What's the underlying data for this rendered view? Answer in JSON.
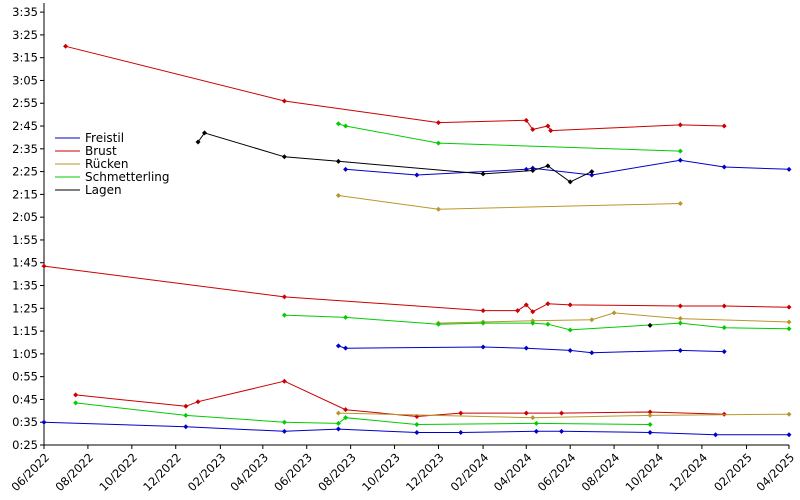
{
  "chart_data": {
    "type": "line",
    "title": "",
    "xlabel": "",
    "ylabel": "",
    "xlim": [
      "2022-06-01",
      "2025-04-01"
    ],
    "ylim_seconds": [
      25,
      219
    ],
    "y_ticks": [
      "0:25",
      "0:35",
      "0:45",
      "0:55",
      "1:05",
      "1:15",
      "1:25",
      "1:35",
      "1:45",
      "1:55",
      "2:05",
      "2:15",
      "2:25",
      "2:35",
      "2:45",
      "2:55",
      "3:05",
      "3:15",
      "3:25",
      "3:35"
    ],
    "x_ticks": [
      "06/2022",
      "08/2022",
      "10/2022",
      "12/2022",
      "02/2023",
      "04/2023",
      "06/2023",
      "08/2023",
      "10/2023",
      "12/2023",
      "02/2024",
      "04/2024",
      "06/2024",
      "08/2024",
      "10/2024",
      "12/2024",
      "02/2025",
      "04/2025"
    ],
    "legend_position": "left",
    "series": [
      {
        "name": "Freistil",
        "color": "#0000cc",
        "segments": [
          [
            [
              "2022-06-01",
              35
            ],
            [
              "2022-12-15",
              33
            ],
            [
              "2023-05-01",
              31
            ],
            [
              "2023-07-15",
              32
            ],
            [
              "2023-11-01",
              30.5
            ],
            [
              "2024-01-01",
              30.5
            ],
            [
              "2024-04-15",
              31
            ],
            [
              "2024-05-20",
              31
            ],
            [
              "2024-09-20",
              30.5
            ],
            [
              "2024-12-20",
              29.5
            ],
            [
              "2025-04-01",
              29.5
            ]
          ],
          [
            [
              "2023-07-15",
              68.5
            ],
            [
              "2023-07-25",
              67.5
            ],
            [
              "2024-02-01",
              68
            ],
            [
              "2024-04-01",
              67.5
            ],
            [
              "2024-06-01",
              66.5
            ],
            [
              "2024-07-01",
              65.5
            ],
            [
              "2024-11-01",
              66.5
            ],
            [
              "2025-01-01",
              66
            ]
          ],
          [
            [
              "2023-07-25",
              146
            ],
            [
              "2023-11-01",
              143.5
            ],
            [
              "2024-04-01",
              146
            ],
            [
              "2024-04-10",
              146.5
            ],
            [
              "2024-07-01",
              143.5
            ],
            [
              "2024-11-01",
              150
            ],
            [
              "2025-01-01",
              147
            ],
            [
              "2025-04-01",
              146
            ]
          ]
        ]
      },
      {
        "name": "Brust",
        "color": "#cc0000",
        "segments": [
          [
            [
              "2022-07-15",
              47
            ],
            [
              "2022-12-15",
              42
            ],
            [
              "2023-01-01",
              44
            ],
            [
              "2023-05-01",
              53
            ],
            [
              "2023-07-25",
              40.5
            ],
            [
              "2023-11-01",
              37.5
            ],
            [
              "2024-01-01",
              39
            ],
            [
              "2024-04-01",
              39
            ],
            [
              "2024-05-20",
              39
            ],
            [
              "2024-09-20",
              39.5
            ],
            [
              "2025-01-01",
              38.5
            ]
          ],
          [
            [
              "2022-06-01",
              103.5
            ],
            [
              "2023-05-01",
              90
            ],
            [
              "2024-02-01",
              84
            ],
            [
              "2024-03-20",
              84
            ],
            [
              "2024-04-01",
              86.5
            ],
            [
              "2024-04-10",
              83.5
            ],
            [
              "2024-05-01",
              87
            ],
            [
              "2024-06-01",
              86.5
            ],
            [
              "2024-11-01",
              86
            ],
            [
              "2025-01-01",
              86
            ],
            [
              "2025-04-01",
              85.5
            ]
          ],
          [
            [
              "2022-07-01",
              200
            ],
            [
              "2023-05-01",
              176
            ],
            [
              "2023-12-01",
              166.5
            ],
            [
              "2024-04-01",
              167.5
            ],
            [
              "2024-04-10",
              163.5
            ],
            [
              "2024-05-01",
              165
            ],
            [
              "2024-05-05",
              163
            ],
            [
              "2024-11-01",
              165.5
            ],
            [
              "2025-01-01",
              165
            ]
          ]
        ]
      },
      {
        "name": "Rücken",
        "color": "#b8962c",
        "segments": [
          [
            [
              "2023-07-15",
              39
            ],
            [
              "2024-04-10",
              37
            ],
            [
              "2024-09-20",
              38
            ],
            [
              "2025-04-01",
              38.5
            ]
          ],
          [
            [
              "2023-12-01",
              78.5
            ],
            [
              "2024-02-01",
              79
            ],
            [
              "2024-04-10",
              79.5
            ],
            [
              "2024-07-01",
              80
            ],
            [
              "2024-08-01",
              83
            ],
            [
              "2024-11-01",
              80.5
            ],
            [
              "2025-04-01",
              79
            ]
          ],
          [
            [
              "2023-07-15",
              134.5
            ],
            [
              "2023-12-01",
              128.5
            ],
            [
              "2024-11-01",
              131
            ]
          ]
        ]
      },
      {
        "name": "Schmetterling",
        "color": "#00cc00",
        "segments": [
          [
            [
              "2022-07-15",
              43.5
            ],
            [
              "2022-12-15",
              38
            ],
            [
              "2023-05-01",
              35
            ],
            [
              "2023-07-15",
              34.5
            ],
            [
              "2023-07-25",
              37
            ],
            [
              "2023-11-01",
              34
            ],
            [
              "2024-04-15",
              34.5
            ],
            [
              "2024-09-20",
              34
            ]
          ],
          [
            [
              "2023-05-01",
              82
            ],
            [
              "2023-07-25",
              81
            ],
            [
              "2023-12-01",
              78
            ],
            [
              "2024-02-01",
              78.5
            ],
            [
              "2024-04-10",
              78.5
            ],
            [
              "2024-05-01",
              78
            ],
            [
              "2024-06-01",
              75.5
            ],
            [
              "2024-11-01",
              78.5
            ],
            [
              "2025-01-01",
              76.5
            ],
            [
              "2025-04-01",
              76
            ]
          ],
          [
            [
              "2023-07-15",
              166
            ],
            [
              "2023-07-25",
              165
            ],
            [
              "2023-12-01",
              157.5
            ],
            [
              "2024-11-01",
              154
            ]
          ]
        ]
      },
      {
        "name": "Lagen",
        "color": "#000000",
        "segments": [
          [
            [
              "2024-09-20",
              77.5
            ]
          ],
          [
            [
              "2023-01-01",
              158
            ],
            [
              "2023-01-10",
              162
            ],
            [
              "2023-05-01",
              151.5
            ],
            [
              "2023-07-15",
              149.5
            ],
            [
              "2024-02-01",
              144
            ],
            [
              "2024-04-10",
              145.5
            ],
            [
              "2024-05-01",
              147.5
            ],
            [
              "2024-06-01",
              140.5
            ],
            [
              "2024-07-01",
              145
            ]
          ]
        ]
      }
    ]
  }
}
